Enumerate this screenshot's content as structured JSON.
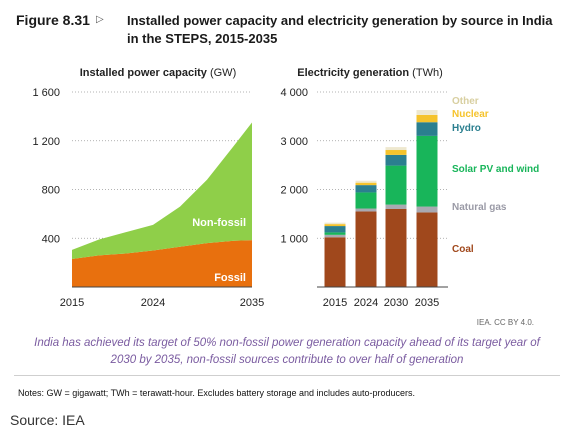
{
  "figure": {
    "label": "Figure 8.31",
    "arrow": "▷",
    "title": "Installed power capacity and electricity generation by source in India in the STEPS, 2015-2035"
  },
  "chart_data": [
    {
      "type": "area",
      "title": "Installed power capacity",
      "title_unit": "(GW)",
      "x": [
        2015,
        2018,
        2021,
        2024,
        2027,
        2030,
        2033,
        2035
      ],
      "ylim": [
        0,
        1600
      ],
      "yticks": [
        400,
        800,
        1200,
        1600
      ],
      "ytick_labels": [
        "400",
        "800",
        "1 200",
        "1 600"
      ],
      "xticks": [
        2015,
        2024,
        2035
      ],
      "xtick_labels": [
        "2015",
        "2024",
        "2035"
      ],
      "grid": "dotted",
      "stacked": true,
      "series": [
        {
          "name": "Fossil",
          "color": "#e8700e",
          "values": [
            230,
            260,
            275,
            300,
            330,
            360,
            380,
            385
          ]
        },
        {
          "name": "Non-fossil",
          "color": "#8fcf49",
          "values": [
            75,
            130,
            175,
            210,
            330,
            520,
            780,
            965
          ]
        }
      ]
    },
    {
      "type": "bar",
      "stacked": true,
      "title": "Electricity generation",
      "title_unit": "(TWh)",
      "categories": [
        "2015",
        "2024",
        "2030",
        "2035"
      ],
      "ylim": [
        0,
        4000
      ],
      "yticks": [
        1000,
        2000,
        3000,
        4000
      ],
      "ytick_labels": [
        "1 000",
        "2 000",
        "3 000",
        "4 000"
      ],
      "grid": "dotted",
      "series": [
        {
          "name": "Coal",
          "color": "#a0481c",
          "values": [
            1020,
            1550,
            1600,
            1530
          ]
        },
        {
          "name": "Natural gas",
          "color": "#a9a9b1",
          "values": [
            50,
            60,
            90,
            120
          ]
        },
        {
          "name": "Solar PV and wind",
          "color": "#18b55a",
          "values": [
            50,
            330,
            800,
            1450
          ]
        },
        {
          "name": "Hydro",
          "color": "#2b7f8f",
          "values": [
            130,
            150,
            220,
            280
          ]
        },
        {
          "name": "Nuclear",
          "color": "#f5c32c",
          "values": [
            40,
            50,
            100,
            150
          ]
        },
        {
          "name": "Other",
          "color": "#eee8cf",
          "values": [
            30,
            40,
            60,
            100
          ]
        }
      ]
    }
  ],
  "credit": "IEA. CC BY 4.0.",
  "summary": "India has achieved its target of 50% non-fossil power generation capacity ahead of its target year of 2030 by 2035, non-fossil sources contribute to over half of generation",
  "notes": "Notes: GW = gigawatt; TWh = terawatt-hour. Excludes battery storage and includes auto-producers.",
  "source": "Source: IEA"
}
